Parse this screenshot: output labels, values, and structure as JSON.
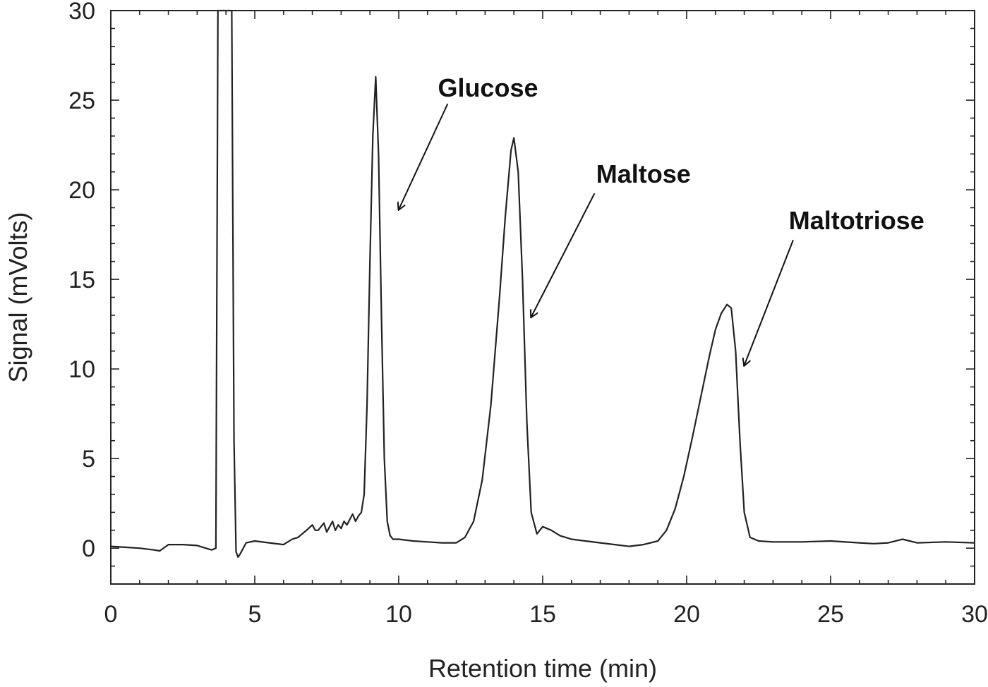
{
  "chart_data": {
    "type": "line",
    "title": "",
    "xlabel": "Retention time (min)",
    "ylabel": "Signal (mVolts)",
    "xlim": [
      0,
      30
    ],
    "ylim": [
      -2,
      30
    ],
    "x_ticks": [
      0,
      5,
      10,
      15,
      20,
      25,
      30
    ],
    "y_ticks": [
      0,
      5,
      10,
      15,
      20,
      25,
      30
    ],
    "grid": false,
    "legend": "none",
    "line_color": "#222222",
    "series": [
      {
        "x": [
          0,
          0.5,
          1.0,
          1.5,
          1.7,
          2.0,
          2.5,
          3.0,
          3.5,
          3.65,
          3.72,
          3.78,
          4.2,
          4.28,
          4.35,
          4.42,
          4.5,
          4.7,
          5.0,
          5.5,
          6.0,
          6.3,
          6.5,
          6.8,
          7.0,
          7.1,
          7.2,
          7.4,
          7.5,
          7.6,
          7.7,
          7.8,
          7.9,
          8.0,
          8.1,
          8.2,
          8.3,
          8.4,
          8.5,
          8.6,
          8.7,
          8.8,
          8.9,
          9.0,
          9.1,
          9.2,
          9.3,
          9.4,
          9.5,
          9.6,
          9.7,
          9.8,
          10.0,
          10.5,
          11.0,
          11.5,
          12.0,
          12.3,
          12.6,
          12.9,
          13.2,
          13.5,
          13.7,
          13.9,
          14.0,
          14.15,
          14.3,
          14.45,
          14.6,
          14.8,
          15.0,
          15.3,
          15.6,
          16.0,
          17.0,
          17.5,
          18.0,
          18.5,
          19.0,
          19.3,
          19.6,
          19.9,
          20.2,
          20.5,
          20.8,
          21.0,
          21.2,
          21.4,
          21.55,
          21.7,
          21.85,
          22.0,
          22.2,
          22.5,
          23.0,
          24.0,
          25.0,
          26.0,
          26.5,
          27.0,
          27.5,
          28.0,
          29.0,
          30.0
        ],
        "y": [
          0.1,
          0.05,
          0.0,
          -0.1,
          -0.15,
          0.2,
          0.2,
          0.15,
          -0.1,
          0.0,
          30,
          30,
          30,
          6,
          -0.2,
          -0.5,
          -0.3,
          0.3,
          0.4,
          0.3,
          0.2,
          0.5,
          0.6,
          1.0,
          1.3,
          1.0,
          1.0,
          1.4,
          0.9,
          1.2,
          1.5,
          1.0,
          1.3,
          1.1,
          1.5,
          1.3,
          1.6,
          1.9,
          1.5,
          1.8,
          2.0,
          3.0,
          8.0,
          16.0,
          23.0,
          26.3,
          22.0,
          13.0,
          5.0,
          1.5,
          0.7,
          0.5,
          0.5,
          0.4,
          0.35,
          0.3,
          0.3,
          0.6,
          1.5,
          3.8,
          8.0,
          14.0,
          18.5,
          22.2,
          22.9,
          21.0,
          15.0,
          7.0,
          2.0,
          0.8,
          1.2,
          1.0,
          0.7,
          0.5,
          0.3,
          0.2,
          0.1,
          0.2,
          0.4,
          1.0,
          2.2,
          4.0,
          6.2,
          8.5,
          10.8,
          12.2,
          13.1,
          13.6,
          13.4,
          11.0,
          6.0,
          2.0,
          0.6,
          0.4,
          0.35,
          0.35,
          0.4,
          0.3,
          0.25,
          0.3,
          0.5,
          0.3,
          0.35,
          0.3
        ]
      }
    ],
    "annotations": [
      {
        "text": "Glucose",
        "label_at": [
          13.1,
          25.2
        ],
        "arrow_from": [
          11.7,
          24.8
        ],
        "arrow_to": [
          10.0,
          18.9
        ]
      },
      {
        "text": "Maltose",
        "label_at": [
          18.5,
          20.4
        ],
        "arrow_from": [
          16.8,
          19.8
        ],
        "arrow_to": [
          14.6,
          12.9
        ]
      },
      {
        "text": "Maltotriose",
        "label_at": [
          25.9,
          17.8
        ],
        "arrow_from": [
          23.7,
          17.2
        ],
        "arrow_to": [
          22.0,
          10.2
        ]
      }
    ]
  }
}
